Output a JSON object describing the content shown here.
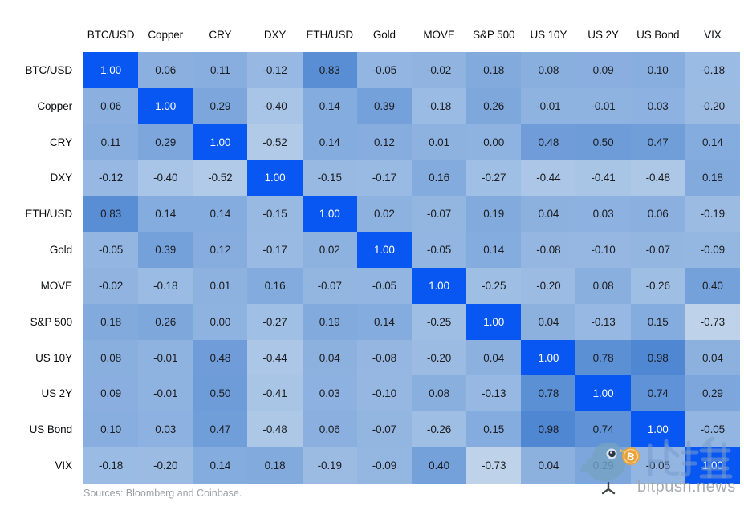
{
  "chart_data": {
    "type": "heatmap",
    "title": "",
    "categories": [
      "BTC/USD",
      "Copper",
      "CRY",
      "DXY",
      "ETH/USD",
      "Gold",
      "MOVE",
      "S&P 500",
      "US 10Y",
      "US 2Y",
      "US Bond",
      "VIX"
    ],
    "matrix": [
      [
        1.0,
        0.06,
        0.11,
        -0.12,
        0.83,
        -0.05,
        -0.02,
        0.18,
        0.08,
        0.09,
        0.1,
        -0.18
      ],
      [
        0.06,
        1.0,
        0.29,
        -0.4,
        0.14,
        0.39,
        -0.18,
        0.26,
        -0.01,
        -0.01,
        0.03,
        -0.2
      ],
      [
        0.11,
        0.29,
        1.0,
        -0.52,
        0.14,
        0.12,
        0.01,
        0.0,
        0.48,
        0.5,
        0.47,
        0.14
      ],
      [
        -0.12,
        -0.4,
        -0.52,
        1.0,
        -0.15,
        -0.17,
        0.16,
        -0.27,
        -0.44,
        -0.41,
        -0.48,
        0.18
      ],
      [
        0.83,
        0.14,
        0.14,
        -0.15,
        1.0,
        0.02,
        -0.07,
        0.19,
        0.04,
        0.03,
        0.06,
        -0.19
      ],
      [
        -0.05,
        0.39,
        0.12,
        -0.17,
        0.02,
        1.0,
        -0.05,
        0.14,
        -0.08,
        -0.1,
        -0.07,
        -0.09
      ],
      [
        -0.02,
        -0.18,
        0.01,
        0.16,
        -0.07,
        -0.05,
        1.0,
        -0.25,
        -0.2,
        0.08,
        -0.26,
        0.4
      ],
      [
        0.18,
        0.26,
        0.0,
        -0.27,
        0.19,
        0.14,
        -0.25,
        1.0,
        0.04,
        -0.13,
        0.15,
        -0.73
      ],
      [
        0.08,
        -0.01,
        0.48,
        -0.44,
        0.04,
        -0.08,
        -0.2,
        0.04,
        1.0,
        0.78,
        0.98,
        0.04
      ],
      [
        0.09,
        -0.01,
        0.5,
        -0.41,
        0.03,
        -0.1,
        0.08,
        -0.13,
        0.78,
        1.0,
        0.74,
        0.29
      ],
      [
        0.1,
        0.03,
        0.47,
        -0.48,
        0.06,
        -0.07,
        -0.26,
        0.15,
        0.98,
        0.74,
        1.0,
        -0.05
      ],
      [
        -0.18,
        -0.2,
        0.14,
        0.18,
        -0.19,
        -0.09,
        0.4,
        -0.73,
        0.04,
        0.29,
        -0.05,
        1.0
      ]
    ],
    "value_decimals": 2,
    "layout_hints": {
      "grid": "off",
      "legend": "none",
      "scale_domain": [
        -1,
        1
      ]
    },
    "colors": {
      "diagonal": "#0857F2",
      "scale_min": "#CFDFEE",
      "scale_max": "#4E86D2",
      "cell_text": "#1B1D21",
      "diagonal_text": "#FFFFFF"
    },
    "source_note": "Sources: Bloomberg and Coinbase."
  },
  "watermark": {
    "brand_cjk": "比推",
    "brand_url": "bitpush.news",
    "bird_color": "#76A3C6",
    "coin_color": "#E8A23B"
  }
}
